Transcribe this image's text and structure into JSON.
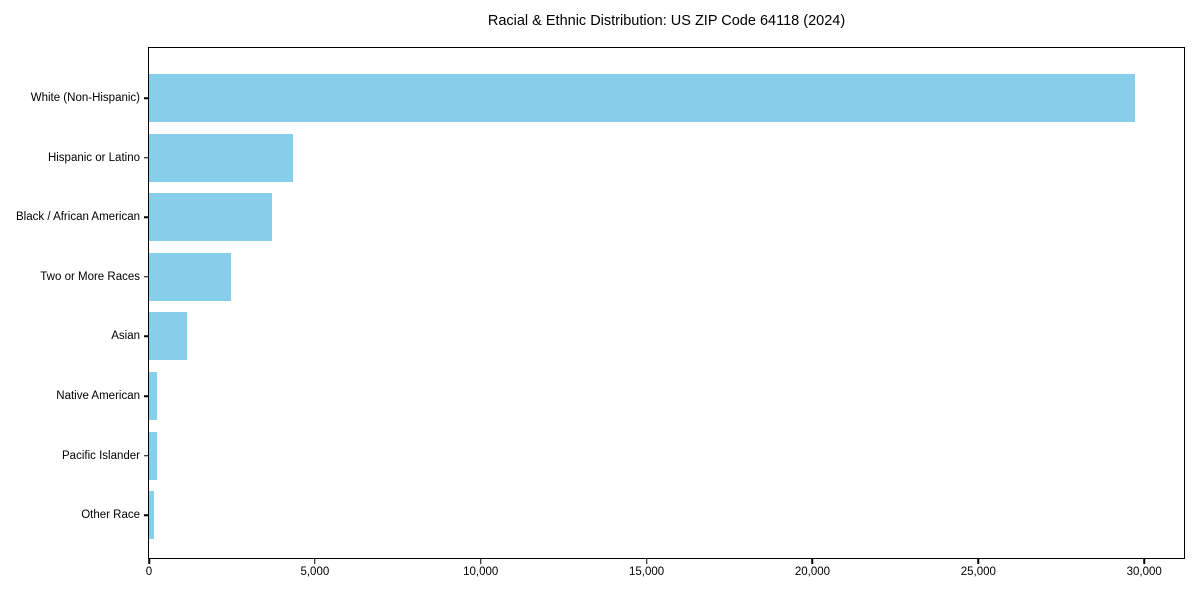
{
  "chart_data": {
    "type": "bar",
    "orientation": "horizontal",
    "title": "Racial & Ethnic Distribution: US ZIP Code 64118 (2024)",
    "categories": [
      "White (Non-Hispanic)",
      "Hispanic or Latino",
      "Black / African American",
      "Two or More Races",
      "Asian",
      "Native American",
      "Pacific Islander",
      "Other Race"
    ],
    "values": [
      29730,
      4340,
      3710,
      2460,
      1140,
      250,
      230,
      160
    ],
    "xlabel": "",
    "ylabel": "",
    "xlim": [
      0,
      31200
    ],
    "xticks": [
      0,
      5000,
      10000,
      15000,
      20000,
      25000,
      30000
    ],
    "xtick_labels": [
      "0",
      "5,000",
      "10,000",
      "15,000",
      "20,000",
      "25,000",
      "30,000"
    ],
    "bar_color": "#87CEEB",
    "frame_color": "#000000",
    "text_color": "#000000",
    "grid": false,
    "legend": null
  }
}
